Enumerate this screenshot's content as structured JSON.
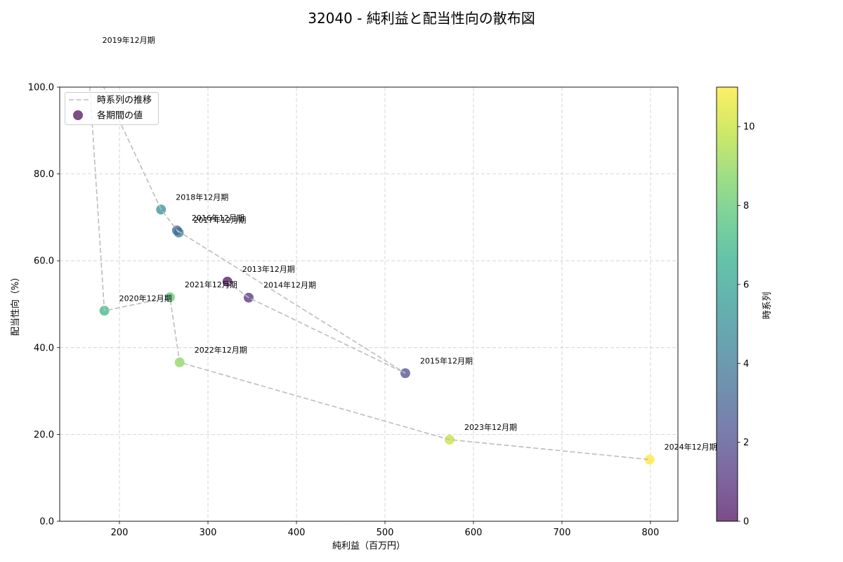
{
  "chart_data": {
    "type": "scatter",
    "title": "32040 - 純利益と配当性向の散布図",
    "xlabel": "純利益（百万円）",
    "ylabel": "配当性向（%）",
    "xlim": [
      132.5,
      831
    ],
    "ylim": [
      0,
      100
    ],
    "xticks": [
      200,
      300,
      400,
      500,
      600,
      700,
      800
    ],
    "xtick_labels": [
      "200",
      "300",
      "400",
      "500",
      "600",
      "700",
      "800"
    ],
    "yticks": [
      0,
      20,
      40,
      60,
      80,
      100
    ],
    "ytick_labels": [
      "0.0",
      "20.0",
      "40.0",
      "60.0",
      "80.0",
      "100.0"
    ],
    "grid": true,
    "legend_placement": "upper-left",
    "series": [
      {
        "name": "時系列の推移",
        "color": "#bdbdbd"
      },
      {
        "name": "各期間の値"
      }
    ],
    "points": [
      {
        "label": "2013年12月期",
        "x": 322,
        "y": 55.2,
        "t": 0
      },
      {
        "label": "2014年12月期",
        "x": 346,
        "y": 51.5,
        "t": 1
      },
      {
        "label": "2015年12月期",
        "x": 523,
        "y": 34.1,
        "t": 2
      },
      {
        "label": "2016年12月期",
        "x": 265,
        "y": 67.0,
        "t": 3
      },
      {
        "label": "2017年12月期",
        "x": 267,
        "y": 66.5,
        "t": 4
      },
      {
        "label": "2018年12月期",
        "x": 247,
        "y": 71.8,
        "t": 5
      },
      {
        "label": "2019年12月期",
        "x": 164,
        "y": 107.9,
        "t": 6
      },
      {
        "label": "2020年12月期",
        "x": 183,
        "y": 48.5,
        "t": 7
      },
      {
        "label": "2021年12月期",
        "x": 257,
        "y": 51.6,
        "t": 8
      },
      {
        "label": "2022年12月期",
        "x": 268,
        "y": 36.6,
        "t": 9
      },
      {
        "label": "2023年12月期",
        "x": 573,
        "y": 18.8,
        "t": 10
      },
      {
        "label": "2024年12月期",
        "x": 799,
        "y": 14.2,
        "t": 11
      }
    ],
    "colorbar": {
      "label": "時系列",
      "range": [
        0,
        11
      ],
      "ticks": [
        0,
        2,
        4,
        6,
        8,
        10
      ],
      "tick_labels": [
        "0",
        "2",
        "4",
        "6",
        "8",
        "10"
      ],
      "stops": [
        "#440154",
        "#482475",
        "#414487",
        "#355f8d",
        "#2a788e",
        "#21918c",
        "#22a884",
        "#44bf70",
        "#7ad151",
        "#bddf26",
        "#fde725"
      ]
    }
  }
}
